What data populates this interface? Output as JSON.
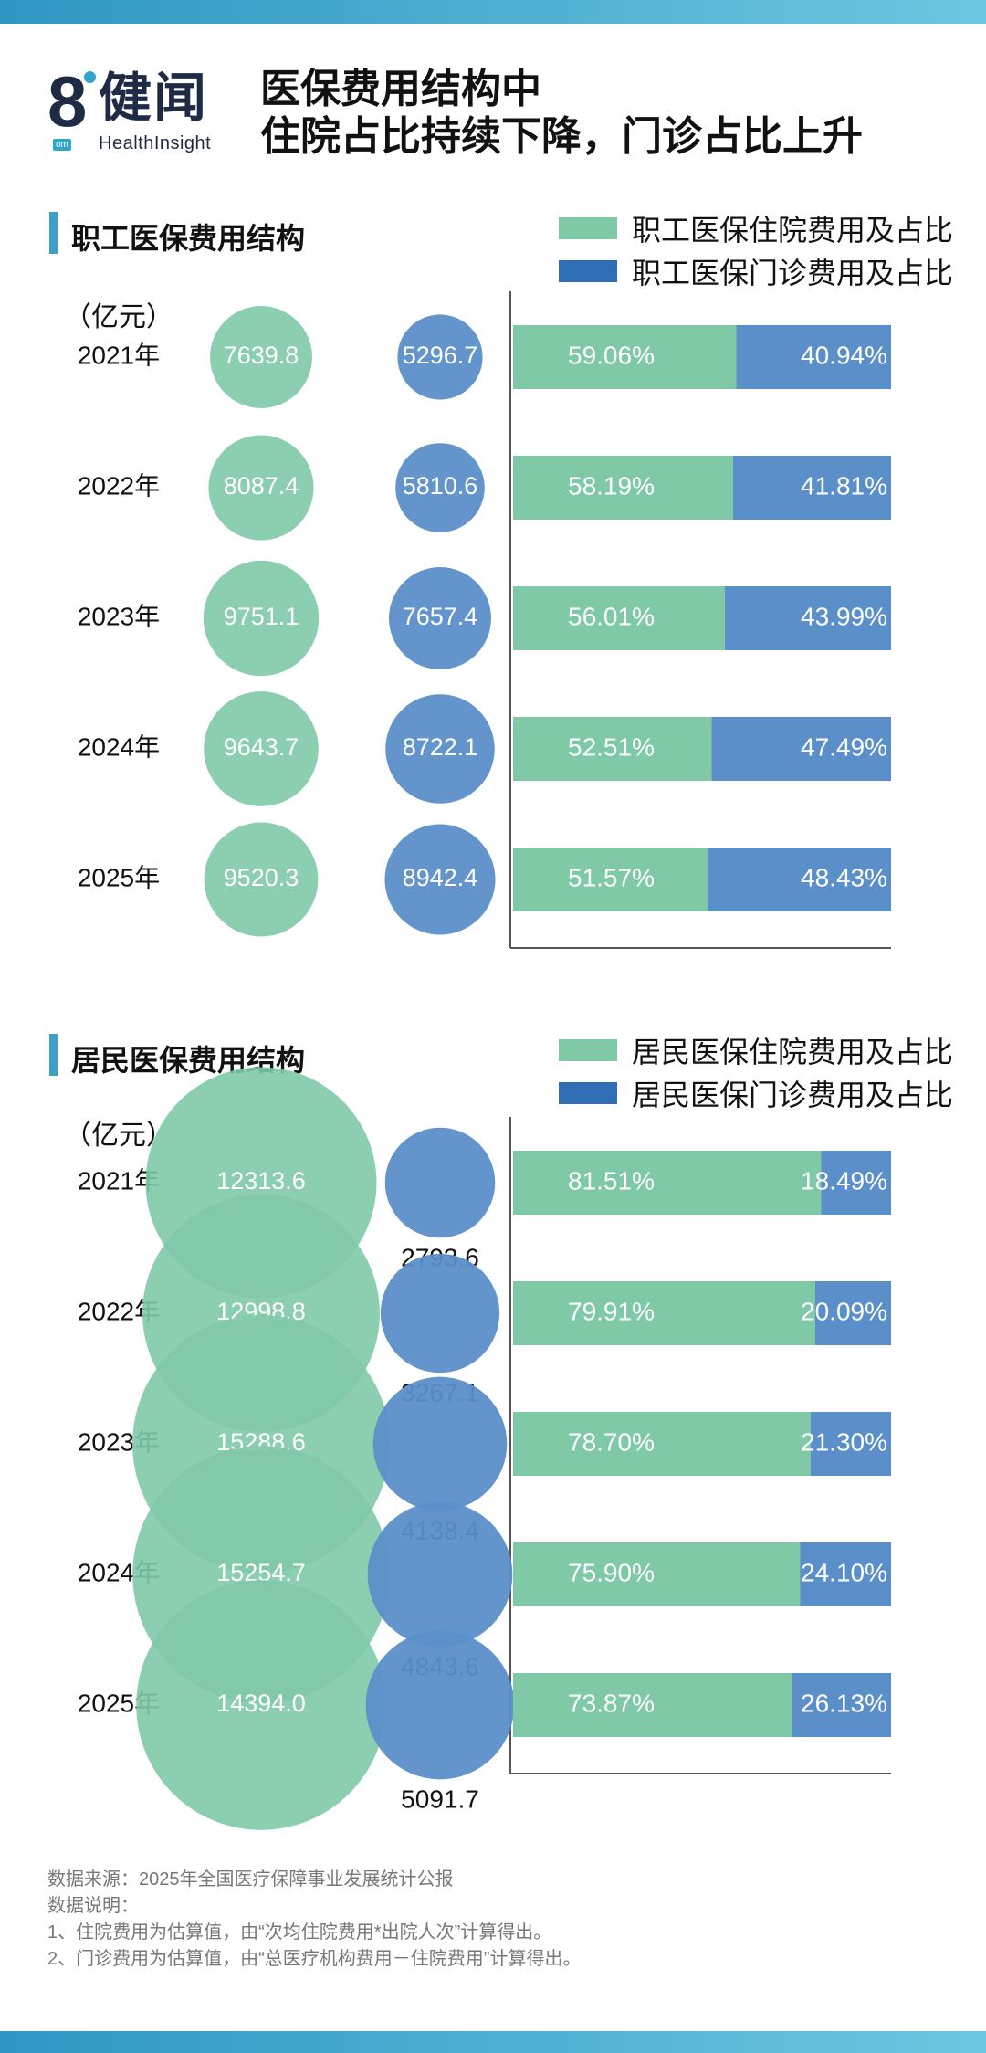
{
  "header": {
    "logo_number": "8",
    "logo_name": "健闻",
    "logo_tag": "om",
    "logo_en": "HealthInsight",
    "headline_lines": [
      "医保费用结构中",
      "住院占比持续下降，门诊占比上升"
    ]
  },
  "colors": {
    "inpatient": "#7fc9a7",
    "outpatient": "#5b8fc9",
    "legend_inpatient": "#7fc9a7",
    "legend_outpatient": "#2f6db5",
    "accent": "#3ea0c8"
  },
  "sections": {
    "employee": {
      "title": "职工医保费用结构",
      "legend_inpatient": "职工医保住院费用及占比",
      "legend_outpatient": "职工医保门诊费用及占比",
      "unit": "（亿元）"
    },
    "resident": {
      "title": "居民医保费用结构",
      "legend_inpatient": "居民医保住院费用及占比",
      "legend_outpatient": "居民医保门诊费用及占比",
      "unit": "（亿元）"
    }
  },
  "chart_data": [
    {
      "type": "bar",
      "stacked": true,
      "title": "职工医保费用结构",
      "unit": "（亿元）",
      "categories": [
        "2021年",
        "2022年",
        "2023年",
        "2024年",
        "2025年"
      ],
      "series": [
        {
          "name": "职工医保住院费用及占比",
          "amounts": [
            "7639.8",
            "8087.4",
            "9751.1",
            "9643.7",
            "9520.3"
          ],
          "values": [
            59.06,
            58.19,
            56.01,
            52.51,
            51.57
          ],
          "labels": [
            "59.06%",
            "58.19%",
            "56.01%",
            "52.51%",
            "51.57%"
          ]
        },
        {
          "name": "职工医保门诊费用及占比",
          "amounts": [
            "5296.7",
            "5810.6",
            "7657.4",
            "8722.1",
            "8942.4"
          ],
          "values": [
            40.94,
            41.81,
            43.99,
            47.49,
            48.43
          ],
          "labels": [
            "40.94%",
            "41.81%",
            "43.99%",
            "47.49%",
            "48.43%"
          ]
        }
      ]
    },
    {
      "type": "bar",
      "stacked": true,
      "title": "居民医保费用结构",
      "unit": "（亿元）",
      "categories": [
        "2021年",
        "2022年",
        "2023年",
        "2024年",
        "2025年"
      ],
      "series": [
        {
          "name": "居民医保住院费用及占比",
          "amounts": [
            "12313.6",
            "12998.8",
            "15288.6",
            "15254.7",
            "14394.0"
          ],
          "values": [
            81.51,
            79.91,
            78.7,
            75.9,
            73.87
          ],
          "labels": [
            "81.51%",
            "79.91%",
            "78.70%",
            "75.90%",
            "73.87%"
          ]
        },
        {
          "name": "居民医保门诊费用及占比",
          "amounts": [
            "2793.6",
            "3267.1",
            "4138.4",
            "4843.6",
            "5091.7"
          ],
          "values": [
            18.49,
            20.09,
            21.3,
            24.1,
            26.13
          ],
          "labels": [
            "18.49%",
            "20.09%",
            "21.30%",
            "24.10%",
            "26.13%"
          ]
        }
      ]
    }
  ],
  "footer": {
    "source": "数据来源：2025年全国医疗保障事业发展统计公报",
    "note_title": "数据说明：",
    "notes": [
      "1、住院费用为估算值，由“次均住院费用*出院人次”计算得出。",
      "2、门诊费用为估算值，由“总医疗机构费用－住院费用”计算得出。"
    ]
  }
}
